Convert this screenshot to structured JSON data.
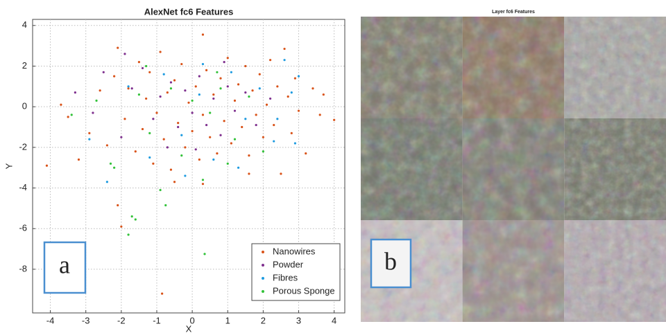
{
  "chart_data": {
    "type": "scatter",
    "title": "AlexNet fc6 Features",
    "x_label": "X",
    "y_label": "Y",
    "panel_label": "a",
    "xlim": [
      -4.5,
      4.3
    ],
    "ylim": [
      -10.15,
      4.3
    ],
    "xticks": [
      -4,
      -3,
      -2,
      -1,
      0,
      1,
      2,
      3,
      4
    ],
    "yticks": [
      -8,
      -6,
      -4,
      -2,
      0,
      2,
      4
    ],
    "grid": true,
    "legend": "lower-right",
    "series": [
      {
        "name": "Nanowires",
        "color": "#d95319",
        "x": [
          -4.1,
          -3.7,
          -3.5,
          -3.2,
          -2.9,
          -2.6,
          -2.4,
          -2.2,
          -2.1,
          -2.0,
          -2.1,
          -1.9,
          -1.8,
          -1.6,
          -1.5,
          -1.4,
          -1.3,
          -1.2,
          -1.1,
          -1.0,
          -0.9,
          -0.85,
          -0.8,
          -0.7,
          -0.6,
          -0.5,
          -0.4,
          -0.3,
          -0.2,
          -0.1,
          0.0,
          0.1,
          0.2,
          0.3,
          0.3,
          0.4,
          0.5,
          0.6,
          0.7,
          0.8,
          0.9,
          1.0,
          1.1,
          1.2,
          1.3,
          1.4,
          1.5,
          1.6,
          1.7,
          1.8,
          1.9,
          2.0,
          2.1,
          2.2,
          2.3,
          2.4,
          2.5,
          2.6,
          2.7,
          2.8,
          2.9,
          3.0,
          3.2,
          3.4,
          3.6,
          3.7,
          4.0,
          -0.5,
          0.3,
          1.6
        ],
        "values": [
          -2.9,
          0.1,
          -0.5,
          -2.6,
          -1.3,
          0.8,
          -1.9,
          1.5,
          -4.85,
          -5.9,
          2.9,
          -0.6,
          0.9,
          -2.2,
          2.2,
          -1.1,
          0.4,
          1.7,
          -2.8,
          -0.3,
          2.7,
          -9.2,
          -1.6,
          0.7,
          -3.1,
          1.3,
          -0.8,
          2.1,
          -2.0,
          0.2,
          -1.2,
          1.0,
          -2.6,
          3.55,
          -0.4,
          1.8,
          -1.5,
          0.6,
          -2.3,
          1.4,
          -0.7,
          2.4,
          -1.8,
          0.3,
          1.1,
          -1.0,
          2.0,
          -2.4,
          0.8,
          -0.4,
          1.6,
          -1.5,
          0.1,
          2.3,
          -0.9,
          1.0,
          -3.3,
          2.85,
          0.5,
          -1.3,
          1.4,
          -0.2,
          -2.3,
          0.9,
          -0.4,
          0.6,
          -0.65,
          -3.7,
          -3.8,
          -3.3
        ]
      },
      {
        "name": "Powder",
        "color": "#7e2f8e",
        "x": [
          -3.3,
          -2.8,
          -2.5,
          -2.0,
          -1.7,
          -1.4,
          -1.1,
          -0.9,
          -0.6,
          -0.4,
          -0.2,
          0.0,
          0.2,
          0.4,
          0.6,
          0.8,
          1.0,
          1.2,
          1.5,
          1.8,
          2.2,
          -1.9,
          0.1,
          -0.7,
          0.9
        ],
        "values": [
          0.7,
          -0.3,
          1.7,
          -1.5,
          0.9,
          1.9,
          -0.6,
          0.5,
          1.2,
          -1.0,
          0.8,
          -0.3,
          1.5,
          -0.9,
          0.4,
          -1.4,
          1.0,
          -0.2,
          0.7,
          -0.9,
          0.4,
          2.6,
          -2.1,
          -2.0,
          2.2
        ]
      },
      {
        "name": "Fibres",
        "color": "#1e9be0",
        "x": [
          -2.4,
          -1.8,
          -1.2,
          -0.8,
          -0.3,
          0.2,
          0.6,
          1.1,
          1.5,
          1.9,
          2.3,
          2.6,
          2.8,
          3.0,
          2.4,
          2.9,
          -0.2,
          1.3,
          0.3,
          -2.9
        ],
        "values": [
          -3.7,
          1.0,
          -2.5,
          1.6,
          -1.4,
          0.6,
          -2.6,
          1.7,
          -0.6,
          0.9,
          -1.7,
          2.3,
          0.7,
          1.5,
          -0.6,
          -1.8,
          -3.4,
          -3.0,
          2.1,
          -1.6
        ]
      },
      {
        "name": "Porous Sponge",
        "color": "#33c23a",
        "x": [
          -3.4,
          -2.3,
          -2.2,
          -1.8,
          -1.7,
          -1.6,
          -1.5,
          -1.2,
          -0.9,
          -0.75,
          -0.6,
          -0.3,
          0.0,
          0.35,
          0.3,
          0.5,
          0.8,
          1.2,
          1.6,
          2.0,
          -2.7,
          1.0,
          -1.3,
          0.7
        ],
        "values": [
          -0.4,
          -2.8,
          -3.0,
          -6.3,
          -5.4,
          -5.55,
          0.6,
          -1.3,
          -4.1,
          -4.85,
          0.9,
          -2.4,
          0.3,
          -7.25,
          -3.6,
          -0.3,
          0.9,
          -1.6,
          0.5,
          -2.2,
          0.3,
          -2.8,
          2.0,
          1.7
        ]
      }
    ]
  },
  "panel_b": {
    "title": "Layer fc6 Features",
    "label": "b"
  }
}
